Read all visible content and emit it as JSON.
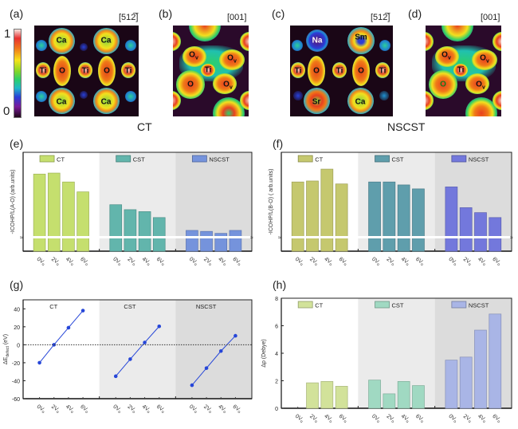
{
  "figure": {
    "panels": {
      "a": "(a)",
      "b": "(b)",
      "c": "(c)",
      "d": "(d)",
      "e": "(e)",
      "f": "(f)",
      "g": "(g)",
      "h": "(h)"
    },
    "directions": {
      "a": "[51ą2]",
      "a_text": "[512̅]",
      "b": "[001]",
      "c_text": "[512̅]",
      "d": "[001]"
    },
    "group_titles": {
      "left": "CT",
      "right": "NSCST"
    },
    "colorbar": {
      "max_label": "1",
      "min_label": "0"
    },
    "maps": {
      "a_atoms": [
        "Ca",
        "Ca",
        "Ti",
        "O",
        "Ti",
        "O",
        "Ti",
        "Ca",
        "Ca"
      ],
      "b_atoms": [
        "O",
        "v",
        "O",
        "v",
        "Ti",
        "O",
        "O",
        "v"
      ],
      "c_atoms": [
        "Na",
        "Sm",
        "Ti",
        "O",
        "Ti",
        "O",
        "Ti",
        "Sr",
        "Ca"
      ],
      "d_atoms": [
        "O",
        "v",
        "O",
        "v",
        "Ti",
        "O",
        "O",
        "v"
      ]
    }
  },
  "chart_data": [
    {
      "id": "e",
      "type": "bar",
      "title": "",
      "ylabel": "-ICOHP/L(A-O) (arb.units)",
      "xlabel": "",
      "groups": [
        "CT",
        "CST",
        "NSCST"
      ],
      "categories": [
        "0Vo",
        "2Vo",
        "4Vo",
        "6Vo"
      ],
      "series": [
        {
          "name": "CT",
          "color": "#c5df6e",
          "values": [
            0.78,
            0.79,
            0.7,
            0.6
          ]
        },
        {
          "name": "CST",
          "color": "#62b5ac",
          "values": [
            0.47,
            0.42,
            0.4,
            0.34
          ]
        },
        {
          "name": "NSCST",
          "color": "#7593dc",
          "values": [
            0.21,
            0.2,
            0.18,
            0.21
          ]
        }
      ],
      "axis_break": true,
      "yticks": [],
      "ylim": [
        0,
        1
      ],
      "legend": "top, one per group"
    },
    {
      "id": "f",
      "type": "bar",
      "title": "",
      "ylabel": "-ICOHP/L(B-O) ( arb.units)",
      "xlabel": "",
      "groups": [
        "CT",
        "CST",
        "NSCST"
      ],
      "categories": [
        "0Vo",
        "2Vo",
        "4Vo",
        "6Vo"
      ],
      "series": [
        {
          "name": "CT",
          "color": "#c5c86e",
          "values": [
            0.7,
            0.71,
            0.83,
            0.68
          ]
        },
        {
          "name": "CST",
          "color": "#5f9eac",
          "values": [
            0.7,
            0.7,
            0.67,
            0.63
          ]
        },
        {
          "name": "NSCST",
          "color": "#7378dc",
          "values": [
            0.65,
            0.44,
            0.39,
            0.34
          ]
        }
      ],
      "axis_break": true,
      "yticks": [],
      "ylim": [
        0,
        1
      ],
      "legend": "top, one per group"
    },
    {
      "id": "g",
      "type": "line",
      "title": "",
      "ylabel": "ΔE_defect (eV)",
      "ylabel_main": "ΔE",
      "ylabel_sub": "defect",
      "ylabel_unit": " (eV)",
      "xlabel": "",
      "groups": [
        "CT",
        "CST",
        "NSCST"
      ],
      "categories": [
        "0Vo",
        "2Vo",
        "4Vo",
        "6Vo"
      ],
      "series": [
        {
          "name": "CT",
          "color": "#2646d8",
          "values": [
            -20,
            0,
            19,
            38
          ]
        },
        {
          "name": "CST",
          "color": "#2646d8",
          "values": [
            -35,
            -16,
            2.5,
            20.5
          ]
        },
        {
          "name": "NSCST",
          "color": "#2646d8",
          "values": [
            -45,
            -26,
            -7,
            10
          ]
        }
      ],
      "ylim": [
        -60,
        50
      ],
      "yticks": [
        -60,
        -40,
        -20,
        0,
        20,
        40
      ],
      "ytick_labels": [
        "-60",
        "-40",
        "-20",
        "0",
        "20",
        "40"
      ],
      "reference_line": 0,
      "legend": "group titles at top"
    },
    {
      "id": "h",
      "type": "bar",
      "title": "",
      "ylabel": "Δp (Debye)",
      "xlabel": "",
      "groups": [
        "CT",
        "CST",
        "NSCST"
      ],
      "categories": [
        "0Vo",
        "2Vo",
        "4Vo",
        "6Vo"
      ],
      "series": [
        {
          "name": "CT",
          "color": "#d2e29a",
          "values": [
            0,
            1.85,
            1.95,
            1.6
          ]
        },
        {
          "name": "CST",
          "color": "#a0d9c2",
          "values": [
            2.05,
            1.05,
            1.95,
            1.65
          ]
        },
        {
          "name": "NSCST",
          "color": "#a9b5e6",
          "values": [
            3.5,
            3.72,
            5.68,
            6.85
          ]
        }
      ],
      "ylim": [
        0,
        8
      ],
      "yticks": [
        0,
        2,
        4,
        6,
        8
      ],
      "ytick_labels": [
        "0",
        "2",
        "4",
        "6",
        "8"
      ],
      "legend": "top, one per group"
    }
  ]
}
